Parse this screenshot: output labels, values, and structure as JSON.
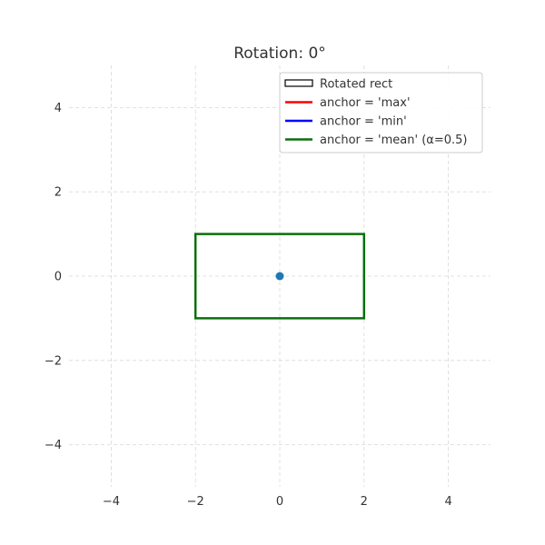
{
  "chart_data": {
    "type": "line",
    "title": "Rotation: 0°",
    "xlabel": "",
    "ylabel": "",
    "xlim": [
      -5,
      5
    ],
    "ylim": [
      -5,
      5
    ],
    "grid": true,
    "legend_position": "top-right",
    "x_ticks": [
      -4,
      -2,
      0,
      2,
      4
    ],
    "y_ticks": [
      -4,
      -2,
      0,
      2,
      4
    ],
    "x_tick_labels": [
      "−4",
      "−2",
      "0",
      "2",
      "4"
    ],
    "y_tick_labels": [
      "−4",
      "−2",
      "0",
      "2",
      "4"
    ],
    "rectangles": [
      {
        "name": "anchor = 'mean' (α=0.5)",
        "color": "#0a6e0a",
        "corners": [
          [
            -2,
            -1
          ],
          [
            2,
            -1
          ],
          [
            2,
            1
          ],
          [
            -2,
            1
          ]
        ]
      }
    ],
    "points": [
      {
        "x": 0,
        "y": 0,
        "color": "#1f77b4"
      }
    ],
    "legend": [
      {
        "label": "Rotated rect",
        "style": "patch",
        "color": "#000000"
      },
      {
        "label": "anchor = 'max'",
        "style": "line",
        "color": "#ff0000"
      },
      {
        "label": "anchor = 'min'",
        "style": "line",
        "color": "#0000ff"
      },
      {
        "label": "anchor = 'mean' (α=0.5)",
        "style": "line",
        "color": "#0a6e0a"
      }
    ]
  }
}
